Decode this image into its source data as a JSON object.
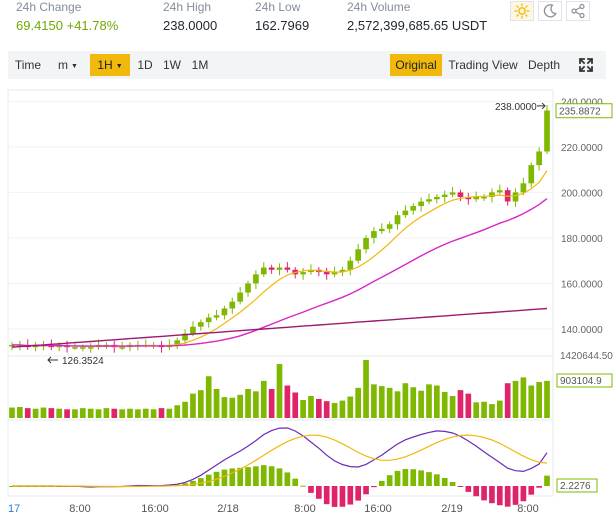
{
  "stats": [
    {
      "label": "24h Change",
      "value": "69.4150 +41.78%",
      "up": true
    },
    {
      "label": "24h High",
      "value": "238.0000",
      "up": false
    },
    {
      "label": "24h Low",
      "value": "162.7969",
      "up": false
    },
    {
      "label": "24h Volume",
      "value": "2,572,399,685.65 USDT",
      "up": false
    }
  ],
  "theme_buttons": [
    {
      "name": "light-theme-button",
      "icon": "sun-icon"
    },
    {
      "name": "dark-theme-button",
      "icon": "moon-icon"
    },
    {
      "name": "share-button",
      "icon": "share-icon"
    }
  ],
  "toolbar": {
    "left": [
      {
        "label": "Time",
        "active": false,
        "caret": false
      },
      {
        "label": "m",
        "active": false,
        "caret": true
      },
      {
        "label": "1H",
        "active": true,
        "caret": true
      },
      {
        "label": "1D",
        "active": false,
        "caret": false
      },
      {
        "label": "1W",
        "active": false,
        "caret": false
      },
      {
        "label": "1M",
        "active": false,
        "caret": false
      }
    ],
    "right": [
      {
        "label": "Original",
        "active": true
      },
      {
        "label": "Trading View",
        "active": false
      },
      {
        "label": "Depth",
        "active": false
      }
    ],
    "fullscreen_icon": "fullscreen-icon"
  },
  "colors": {
    "up": "#7fb800",
    "down": "#e0246a",
    "ma_fast": "#f0b90b",
    "ma_mid": "#d926c8",
    "ma_slow": "#9b1a6e",
    "macd": "#6b2ab8",
    "signal": "#f0b90b"
  },
  "chart_data": {
    "type": "candlestick",
    "price_ticks": [
      140,
      160,
      180,
      200,
      220,
      240
    ],
    "price_tick_labels": [
      "140.0000",
      "160.0000",
      "180.0000",
      "200.0000",
      "220.0000",
      "240.0000"
    ],
    "price_range": [
      129,
      245
    ],
    "high_marker": {
      "label": "238.0000",
      "value": 238
    },
    "low_marker": {
      "label": "126.3524",
      "value": 126.35
    },
    "last_price": {
      "label": "235.8872",
      "value": 235.89
    },
    "time_labels": [
      "17",
      "8:00",
      "16:00",
      "2/18",
      "8:00",
      "16:00",
      "2/19",
      "8:00"
    ],
    "volume_labels": [
      "1420644.50",
      "903104.9"
    ],
    "indicator_label": "2.2276",
    "closes": [
      133,
      133,
      132,
      133,
      133,
      132,
      133,
      132,
      132,
      132,
      132,
      133,
      133,
      132,
      132,
      133,
      133,
      133,
      133,
      132,
      133,
      135,
      138,
      141,
      143,
      145,
      146,
      149,
      152,
      156,
      160,
      164,
      167,
      166,
      167,
      166,
      164,
      165,
      166,
      165,
      164,
      165,
      166,
      170,
      175,
      180,
      183,
      184,
      186,
      190,
      192,
      194,
      196,
      197,
      198,
      199,
      200,
      198,
      197,
      198,
      198,
      200,
      201,
      196,
      200,
      204,
      212,
      218,
      236
    ],
    "volumes": [
      0.18,
      0.19,
      0.17,
      0.16,
      0.18,
      0.17,
      0.16,
      0.15,
      0.15,
      0.17,
      0.16,
      0.15,
      0.17,
      0.16,
      0.15,
      0.16,
      0.15,
      0.16,
      0.15,
      0.17,
      0.16,
      0.22,
      0.28,
      0.42,
      0.48,
      0.72,
      0.5,
      0.36,
      0.35,
      0.4,
      0.5,
      0.46,
      0.64,
      0.5,
      0.93,
      0.56,
      0.44,
      0.31,
      0.38,
      0.33,
      0.29,
      0.26,
      0.3,
      0.37,
      0.52,
      1.0,
      0.58,
      0.55,
      0.52,
      0.46,
      0.6,
      0.53,
      0.47,
      0.58,
      0.56,
      0.45,
      0.38,
      0.48,
      0.42,
      0.27,
      0.28,
      0.24,
      0.3,
      0.6,
      0.64,
      0.7,
      0.56,
      0.62,
      0.64
    ]
  }
}
